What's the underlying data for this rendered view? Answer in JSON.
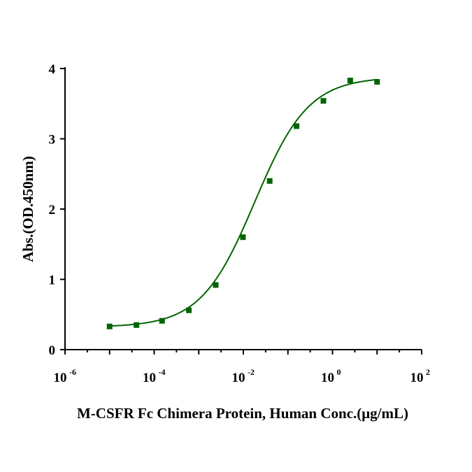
{
  "chart_data": {
    "type": "scatter",
    "xlabel": "M-CSFR Fc Chimera Protein, Human Conc.(μg/mL)",
    "ylabel": "Abs.(OD.450nm)",
    "x_scale": "log",
    "xlim": [
      1e-06,
      100
    ],
    "ylim": [
      0,
      4
    ],
    "x_ticks": [
      {
        "base": "10",
        "exp": "-6",
        "value": 1e-06
      },
      {
        "base": "10",
        "exp": "-4",
        "value": 0.0001
      },
      {
        "base": "10",
        "exp": "-2",
        "value": 0.01
      },
      {
        "base": "10",
        "exp": "0",
        "value": 1
      },
      {
        "base": "10",
        "exp": "2",
        "value": 100
      }
    ],
    "y_ticks": [
      "0",
      "1",
      "2",
      "3",
      "4"
    ],
    "grid": false,
    "legend": "none",
    "series": [
      {
        "color": "#006400",
        "marker": "square",
        "fit": "4PL",
        "x": [
          1e-05,
          4e-05,
          0.00015,
          0.0006,
          0.0024,
          0.0098,
          0.039,
          0.156,
          0.625,
          2.5,
          10
        ],
        "y": [
          0.33,
          0.35,
          0.41,
          0.56,
          0.92,
          1.6,
          2.4,
          3.18,
          3.54,
          3.83,
          3.81
        ]
      }
    ]
  }
}
